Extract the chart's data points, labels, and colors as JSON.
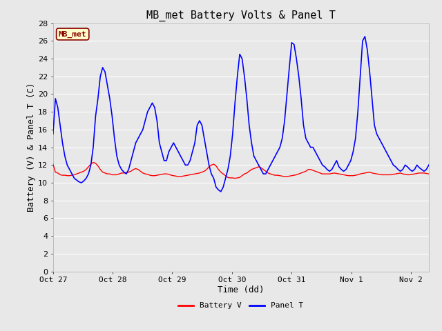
{
  "title": "MB_met Battery Volts & Panel T",
  "xlabel": "Time (dd)",
  "ylabel": "Battery (V) & Panel T (C)",
  "ylim": [
    0,
    28
  ],
  "yticks": [
    0,
    2,
    4,
    6,
    8,
    10,
    12,
    14,
    16,
    18,
    20,
    22,
    24,
    26,
    28
  ],
  "xlim": [
    0.0,
    6.3
  ],
  "xtick_positions": [
    0.0,
    1.0,
    2.0,
    3.0,
    4.0,
    5.0,
    6.0
  ],
  "xtick_labels": [
    "Oct 27",
    "Oct 28",
    "Oct 29",
    "Oct 30",
    "Oct 31",
    "Nov 1",
    "Nov 2"
  ],
  "bg_color": "#e8e8e8",
  "plot_bg_color": "#e8e8e8",
  "grid_color": "#ffffff",
  "label_box_text": "MB_met",
  "label_box_facecolor": "#ffffcc",
  "label_box_edgecolor": "#880000",
  "label_box_textcolor": "#880000",
  "battery_color": "#ff0000",
  "panel_color": "#0000ff",
  "battery_label": "Battery V",
  "panel_label": "Panel T",
  "title_fontsize": 11,
  "axis_fontsize": 9,
  "tick_fontsize": 8,
  "battery_v": [
    12.1,
    11.2,
    11.1,
    10.9,
    10.85,
    10.85,
    10.8,
    10.8,
    10.85,
    10.9,
    11.0,
    11.1,
    11.2,
    11.3,
    11.5,
    11.8,
    12.1,
    12.3,
    12.2,
    11.9,
    11.5,
    11.2,
    11.1,
    11.0,
    11.0,
    10.9,
    10.9,
    10.9,
    11.0,
    11.1,
    11.1,
    11.15,
    11.2,
    11.3,
    11.5,
    11.6,
    11.5,
    11.3,
    11.1,
    11.0,
    10.95,
    10.85,
    10.8,
    10.8,
    10.85,
    10.9,
    10.95,
    11.0,
    11.0,
    10.95,
    10.85,
    10.8,
    10.75,
    10.7,
    10.7,
    10.75,
    10.8,
    10.85,
    10.9,
    10.95,
    11.0,
    11.05,
    11.1,
    11.2,
    11.3,
    11.5,
    11.8,
    12.0,
    12.1,
    11.9,
    11.5,
    11.2,
    11.0,
    10.8,
    10.6,
    10.55,
    10.55,
    10.5,
    10.55,
    10.6,
    10.8,
    11.0,
    11.1,
    11.3,
    11.5,
    11.6,
    11.7,
    11.8,
    11.7,
    11.5,
    11.3,
    11.1,
    11.0,
    10.9,
    10.85,
    10.85,
    10.8,
    10.75,
    10.7,
    10.7,
    10.75,
    10.8,
    10.85,
    10.9,
    11.0,
    11.1,
    11.2,
    11.3,
    11.5,
    11.5,
    11.4,
    11.3,
    11.2,
    11.1,
    11.0,
    11.0,
    11.0,
    11.0,
    11.05,
    11.1,
    11.05,
    11.0,
    10.95,
    10.9,
    10.85,
    10.8,
    10.8,
    10.8,
    10.85,
    10.9,
    11.0,
    11.05,
    11.1,
    11.15,
    11.2,
    11.1,
    11.05,
    11.0,
    10.95,
    10.9,
    10.9,
    10.9,
    10.9,
    10.9,
    10.95,
    11.0,
    11.05,
    11.1,
    11.0,
    10.95,
    10.9,
    10.9,
    10.95,
    11.0,
    11.05,
    11.1,
    11.1,
    11.1,
    11.05,
    11.0
  ],
  "panel_t": [
    15.5,
    19.5,
    18.5,
    16.5,
    14.5,
    13.0,
    12.0,
    11.5,
    11.0,
    10.5,
    10.3,
    10.1,
    10.0,
    10.2,
    10.5,
    11.0,
    12.0,
    14.0,
    17.5,
    19.5,
    22.0,
    23.0,
    22.5,
    21.0,
    19.5,
    17.5,
    15.0,
    13.0,
    12.0,
    11.5,
    11.2,
    11.0,
    11.5,
    12.5,
    13.5,
    14.5,
    15.0,
    15.5,
    16.0,
    17.0,
    18.0,
    18.5,
    19.0,
    18.5,
    17.0,
    14.5,
    13.5,
    12.5,
    12.5,
    13.5,
    14.0,
    14.5,
    14.0,
    13.5,
    13.0,
    12.5,
    12.0,
    12.0,
    12.5,
    13.5,
    14.5,
    16.5,
    17.0,
    16.5,
    15.0,
    13.5,
    12.0,
    11.0,
    10.5,
    9.5,
    9.2,
    9.0,
    9.5,
    10.5,
    11.5,
    13.0,
    15.5,
    19.0,
    22.0,
    24.5,
    24.0,
    22.0,
    19.5,
    16.5,
    14.5,
    13.0,
    12.5,
    12.0,
    11.5,
    11.0,
    11.0,
    11.5,
    12.0,
    12.5,
    13.0,
    13.5,
    14.0,
    15.0,
    17.0,
    20.0,
    23.0,
    25.8,
    25.6,
    24.0,
    22.0,
    19.5,
    16.5,
    15.0,
    14.5,
    14.0,
    14.0,
    13.5,
    13.0,
    12.5,
    12.0,
    11.8,
    11.5,
    11.3,
    11.5,
    12.0,
    12.5,
    11.8,
    11.5,
    11.3,
    11.5,
    12.0,
    12.5,
    13.5,
    15.0,
    18.0,
    22.0,
    26.0,
    26.5,
    25.0,
    22.5,
    19.5,
    16.5,
    15.5,
    15.0,
    14.5,
    14.0,
    13.5,
    13.0,
    12.5,
    12.0,
    11.8,
    11.5,
    11.3,
    11.5,
    12.0,
    11.8,
    11.5,
    11.3,
    11.5,
    12.0,
    11.7,
    11.5,
    11.3,
    11.5,
    12.0
  ]
}
